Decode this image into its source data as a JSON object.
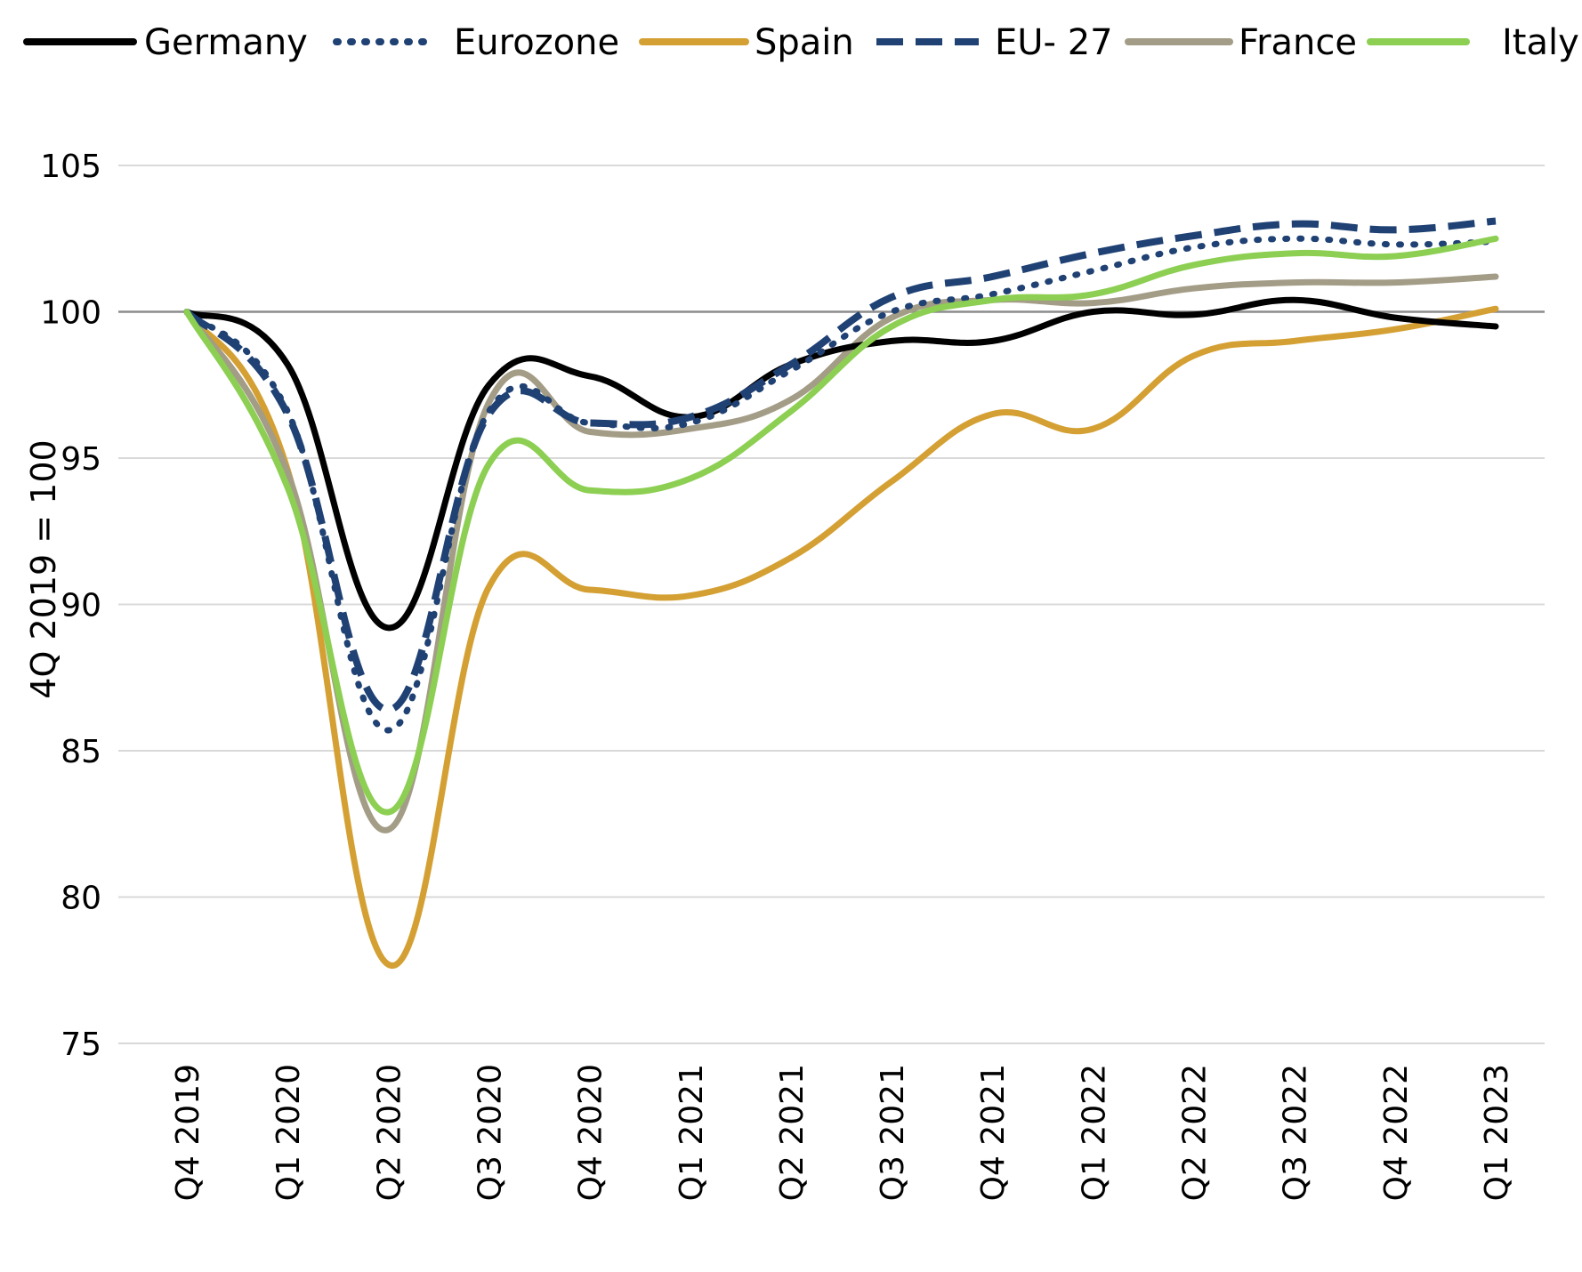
{
  "chart_data": {
    "type": "line",
    "title": "",
    "xlabel": "",
    "ylabel": "4Q 2019 = 100",
    "ylim": [
      75,
      105
    ],
    "yticks": [
      75,
      80,
      85,
      90,
      95,
      100,
      105
    ],
    "grid": true,
    "legend_position": "top",
    "categories": [
      "Q4 2019",
      "Q1 2020",
      "Q2 2020",
      "Q3 2020",
      "Q4 2020",
      "Q1 2021",
      "Q2 2021",
      "Q3 2021",
      "Q4 2021",
      "Q1 2022",
      "Q2 2022",
      "Q3 2022",
      "Q4 2022",
      "Q1 2023"
    ],
    "series": [
      {
        "name": "Germany",
        "color": "#000000",
        "style": "solid",
        "values": [
          100.0,
          98.2,
          89.2,
          97.5,
          97.8,
          96.4,
          98.2,
          99.0,
          99.0,
          100.0,
          99.9,
          100.4,
          99.8,
          99.5
        ]
      },
      {
        "name": "Eurozone",
        "color": "#1F4173",
        "style": "dotted",
        "values": [
          100.0,
          96.6,
          85.7,
          96.6,
          96.2,
          96.2,
          98.0,
          100.0,
          100.6,
          101.4,
          102.2,
          102.5,
          102.3,
          102.4
        ]
      },
      {
        "name": "Spain",
        "color": "#D4A033",
        "style": "solid",
        "values": [
          100.0,
          94.6,
          77.7,
          90.6,
          90.5,
          90.3,
          91.6,
          94.2,
          96.5,
          96.0,
          98.5,
          99.0,
          99.4,
          100.1
        ]
      },
      {
        "name": "EU- 27",
        "color": "#1F4173",
        "style": "dashed",
        "values": [
          100.0,
          96.5,
          86.4,
          96.5,
          96.2,
          96.4,
          98.2,
          100.5,
          101.2,
          102.0,
          102.6,
          103.0,
          102.8,
          103.1
        ]
      },
      {
        "name": "France",
        "color": "#A39C86",
        "style": "solid",
        "values": [
          100.0,
          94.5,
          82.3,
          96.9,
          95.9,
          96.0,
          97.0,
          99.8,
          100.4,
          100.3,
          100.8,
          101.0,
          101.0,
          101.2
        ]
      },
      {
        "name": "Italy",
        "color": "#8CCF52",
        "style": "solid",
        "values": [
          100.0,
          94.0,
          82.9,
          94.8,
          93.9,
          94.3,
          96.6,
          99.5,
          100.4,
          100.6,
          101.6,
          102.0,
          101.9,
          102.5
        ]
      }
    ]
  }
}
